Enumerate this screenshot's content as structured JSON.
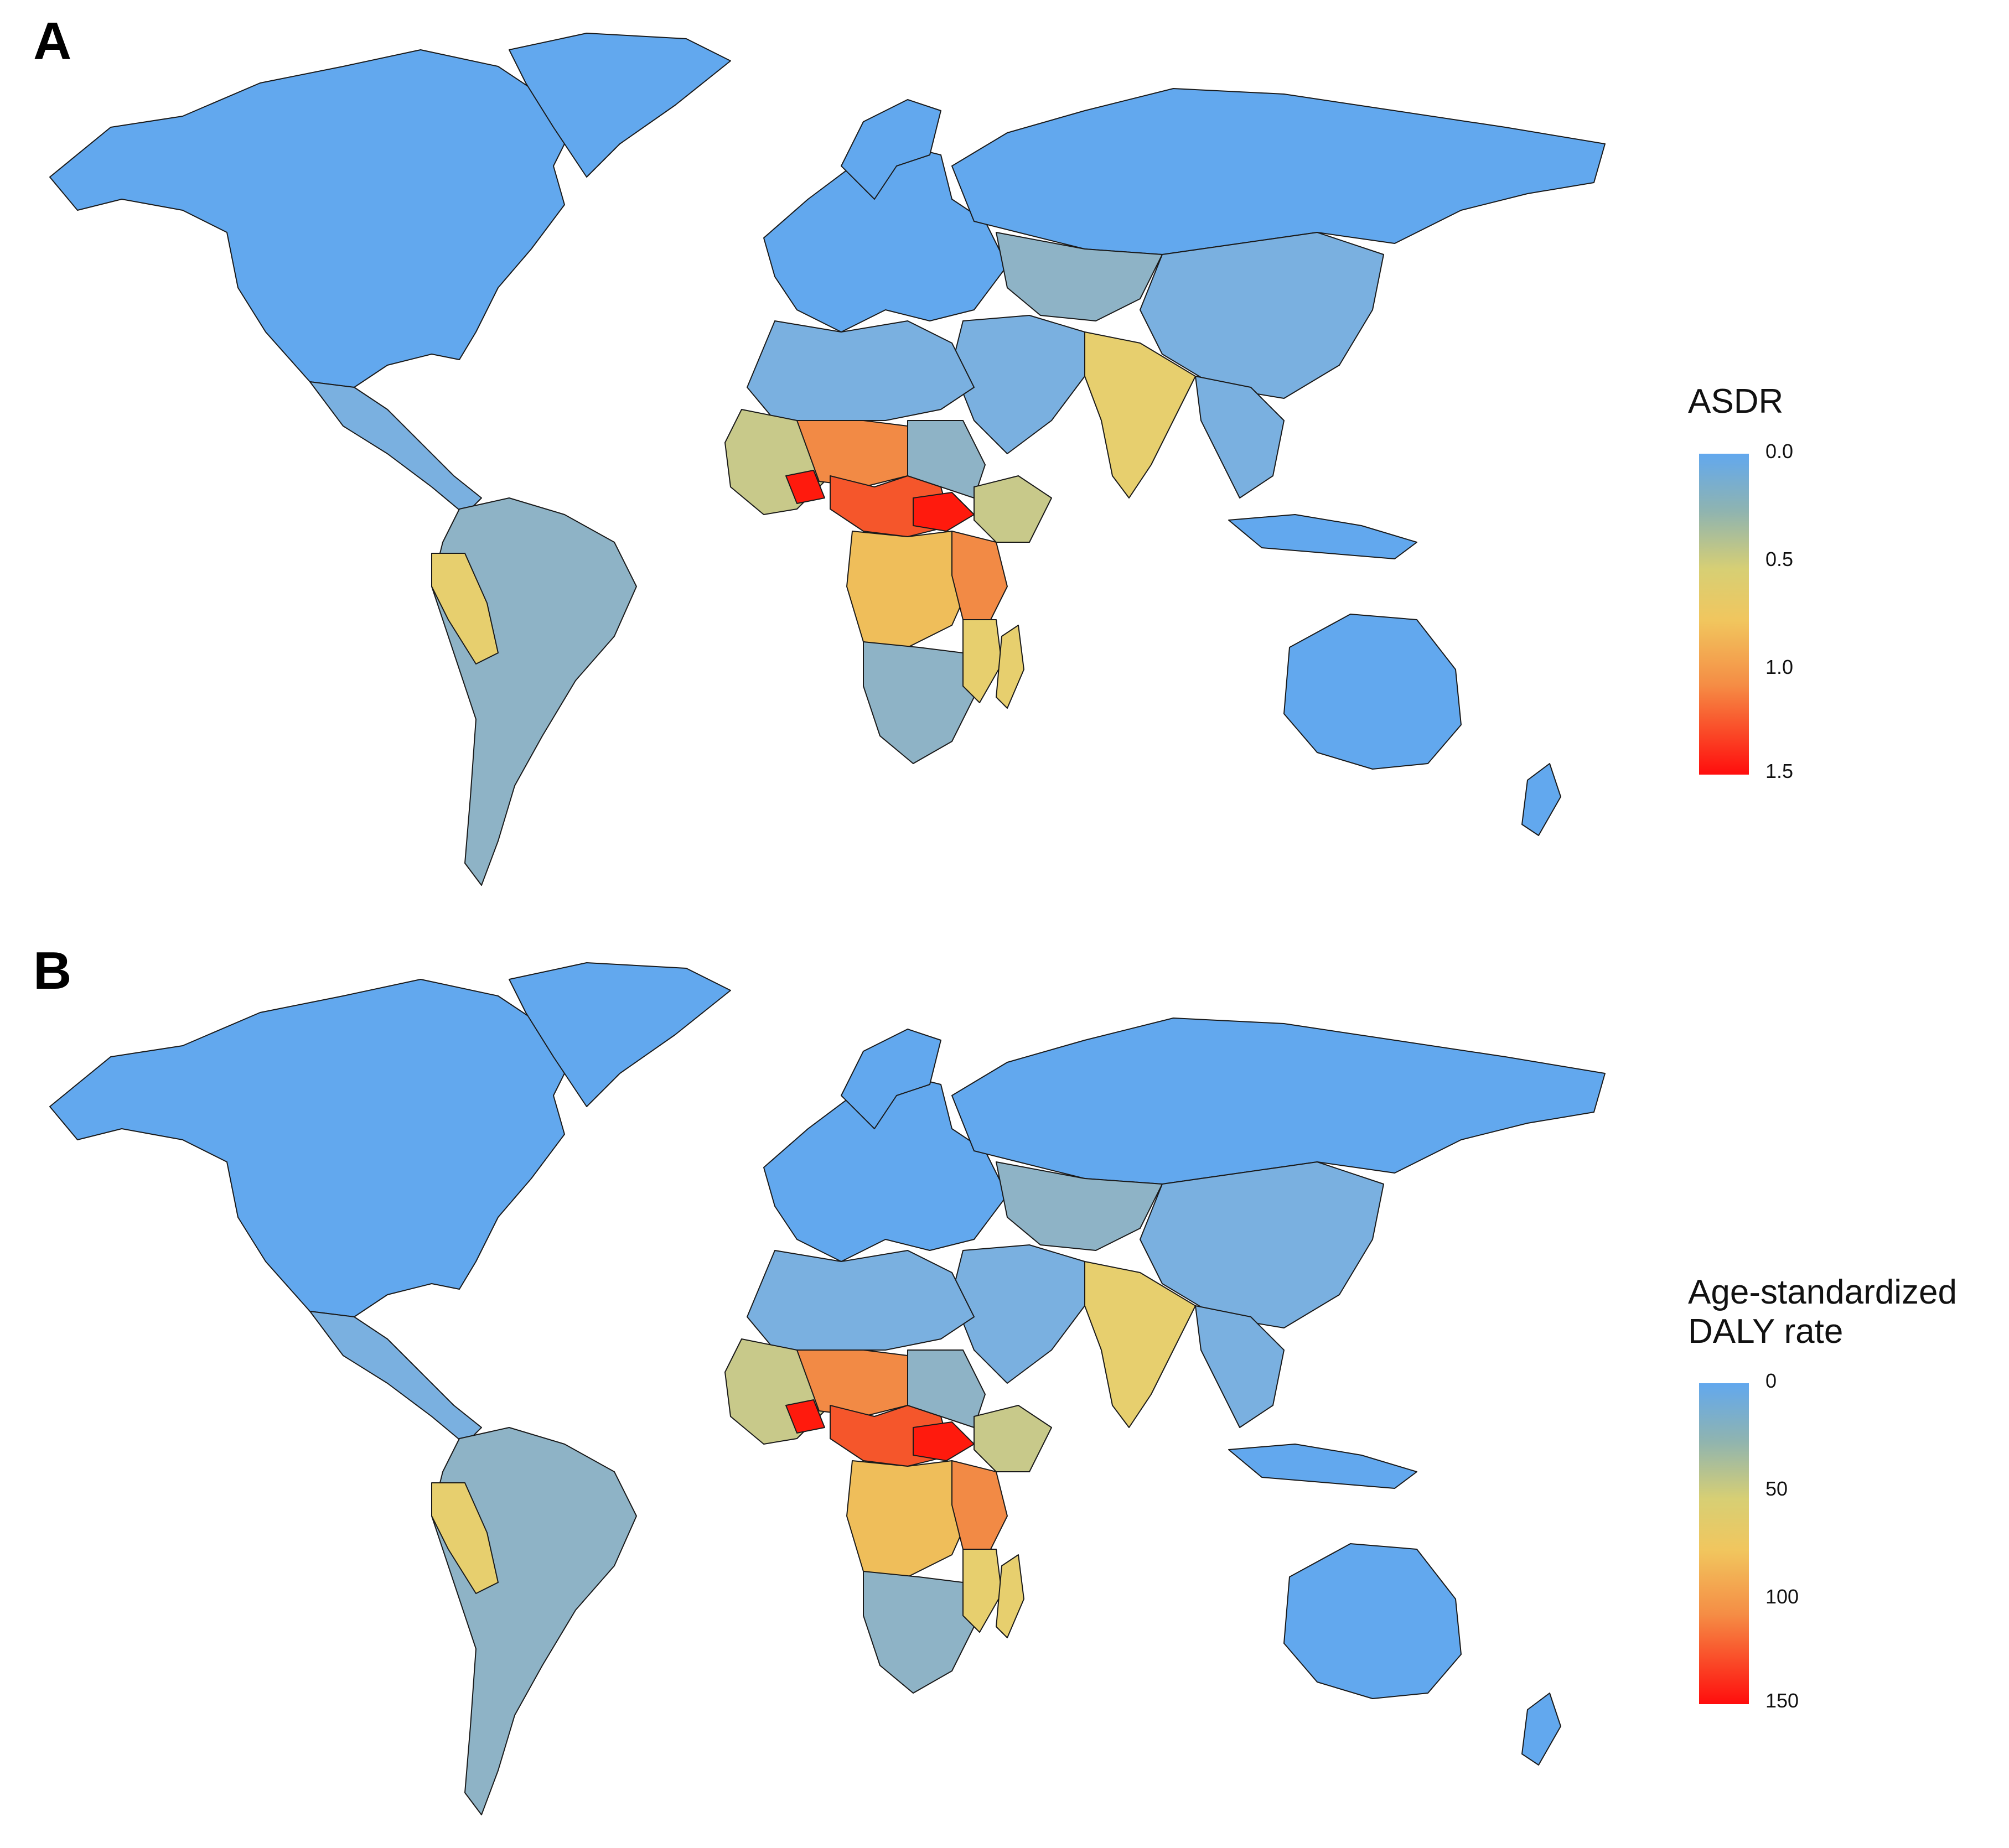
{
  "figure": {
    "panels": [
      {
        "label": "A",
        "legend": {
          "title_lines": [
            "ASDR"
          ],
          "ticks": [
            "0.0",
            "0.5",
            "1.0",
            "1.5"
          ]
        }
      },
      {
        "label": "B",
        "legend": {
          "title_lines": [
            "Age-standardized",
            "DALY rate"
          ],
          "ticks": [
            "0",
            "50",
            "100",
            "150"
          ]
        }
      }
    ]
  },
  "colors": {
    "ocean": "#ffffff",
    "low": "#62a8ee",
    "mid_blue": "#7ab0e0",
    "grey_blue": "#8eb3c6",
    "olive": "#c8c98a",
    "yellow": "#e7cf6e",
    "orange_yellow": "#efbe5a",
    "orange": "#f28a45",
    "red_orange": "#f5562b",
    "red": "#ff1a0d",
    "border": "#1a1a1a"
  }
}
